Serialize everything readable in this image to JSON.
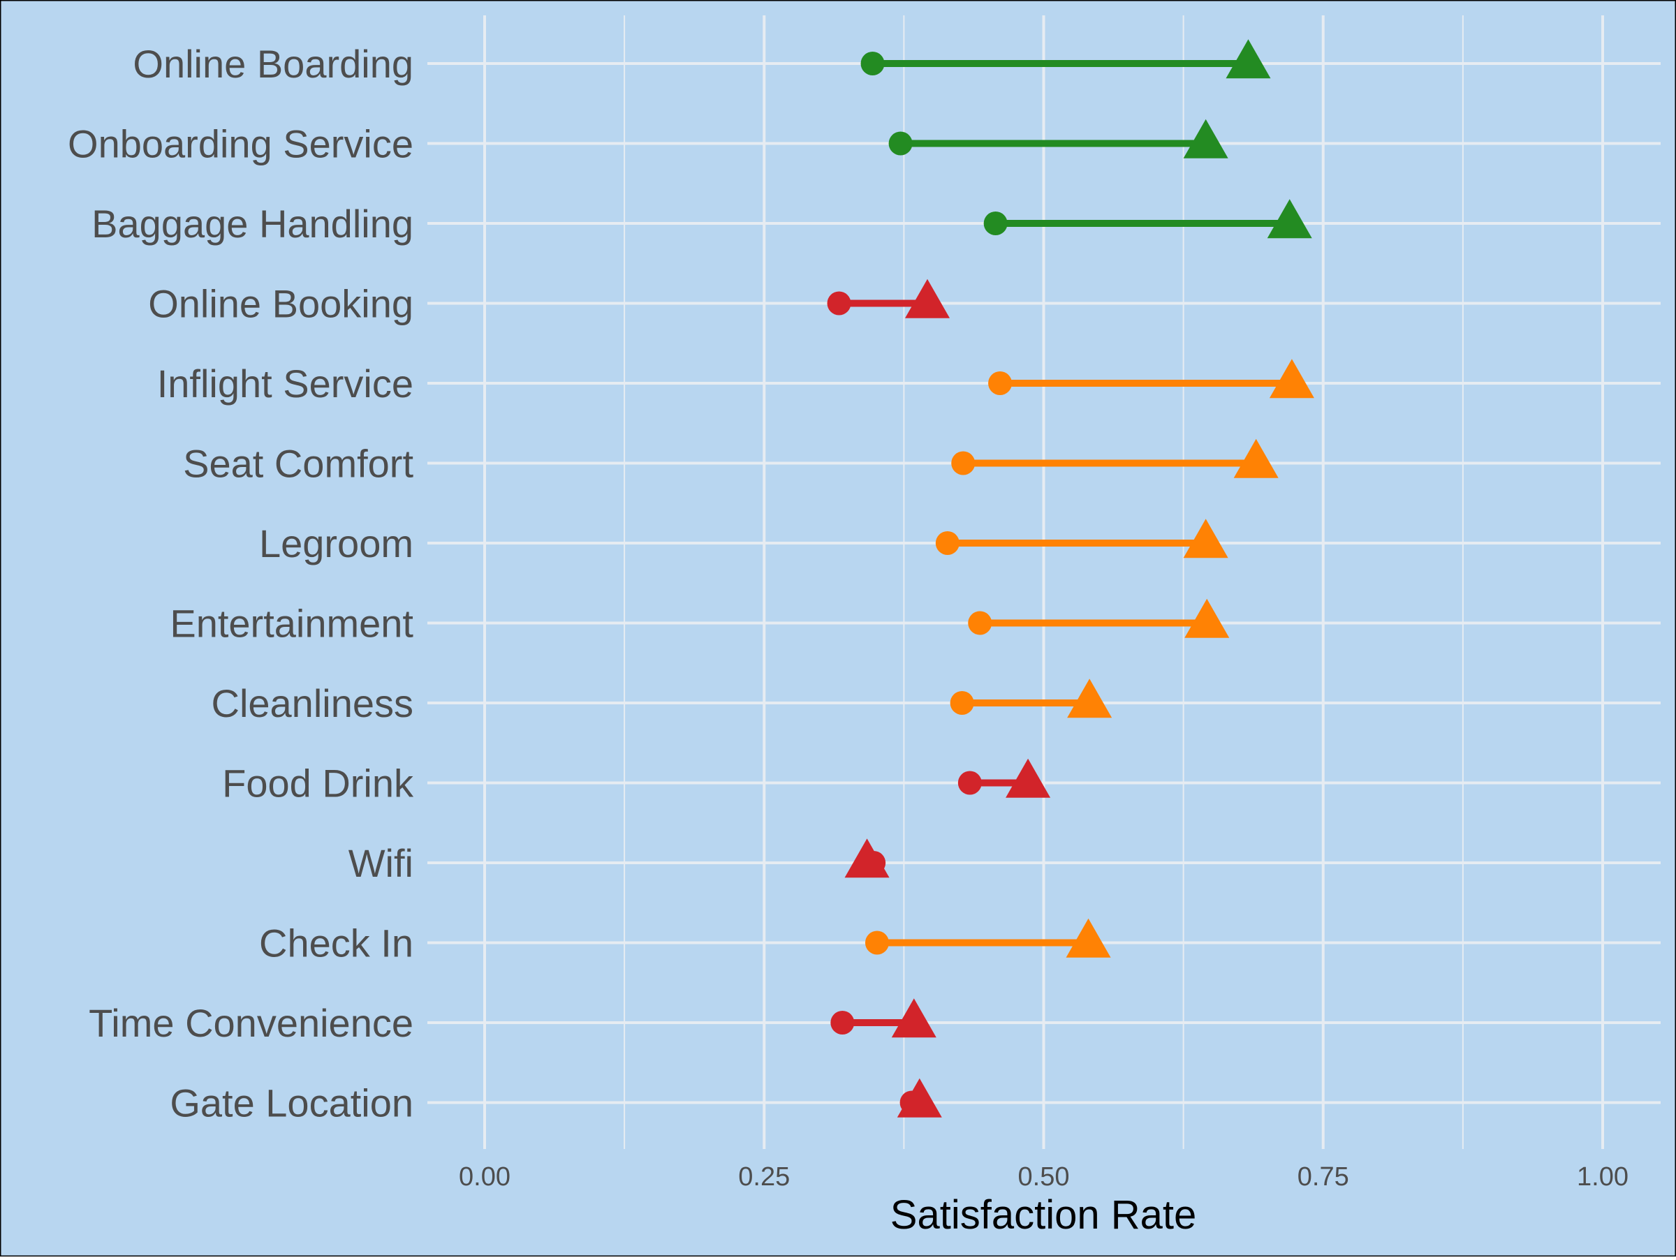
{
  "chart_data": {
    "type": "dumbbell",
    "xlabel": "Satisfaction Rate",
    "ylabel": "",
    "xlim": [
      -0.1,
      1.05
    ],
    "xticks": [
      "0.00",
      "0.25",
      "0.50",
      "0.75",
      "1.00"
    ],
    "xtick_values": [
      0,
      0.25,
      0.5,
      0.75,
      1.0
    ],
    "grid": true,
    "legend": "none",
    "marker_start": "circle",
    "marker_end": "triangle",
    "colors": {
      "background": "#b8d6f0",
      "grid": "#e6ecf2",
      "green": "#238b22",
      "orange": "#ff8204",
      "red": "#d2242a"
    },
    "categories": [
      {
        "label": "Online Boarding",
        "start": 0.347,
        "end": 0.683,
        "color": "green"
      },
      {
        "label": "Onboarding Service",
        "start": 0.372,
        "end": 0.645,
        "color": "green"
      },
      {
        "label": "Baggage Handling",
        "start": 0.457,
        "end": 0.72,
        "color": "green"
      },
      {
        "label": "Online Booking",
        "start": 0.317,
        "end": 0.396,
        "color": "red"
      },
      {
        "label": "Inflight Service",
        "start": 0.461,
        "end": 0.722,
        "color": "orange"
      },
      {
        "label": "Seat Comfort",
        "start": 0.428,
        "end": 0.69,
        "color": "orange"
      },
      {
        "label": "Legroom",
        "start": 0.414,
        "end": 0.645,
        "color": "orange"
      },
      {
        "label": "Entertainment",
        "start": 0.443,
        "end": 0.646,
        "color": "orange"
      },
      {
        "label": "Cleanliness",
        "start": 0.427,
        "end": 0.541,
        "color": "orange"
      },
      {
        "label": "Food Drink",
        "start": 0.434,
        "end": 0.486,
        "color": "red"
      },
      {
        "label": "Wifi",
        "start": 0.348,
        "end": 0.342,
        "color": "red"
      },
      {
        "label": "Check In",
        "start": 0.351,
        "end": 0.54,
        "color": "orange"
      },
      {
        "label": "Time Convenience",
        "start": 0.32,
        "end": 0.384,
        "color": "red"
      },
      {
        "label": "Gate Location",
        "start": 0.382,
        "end": 0.389,
        "color": "red"
      }
    ]
  }
}
